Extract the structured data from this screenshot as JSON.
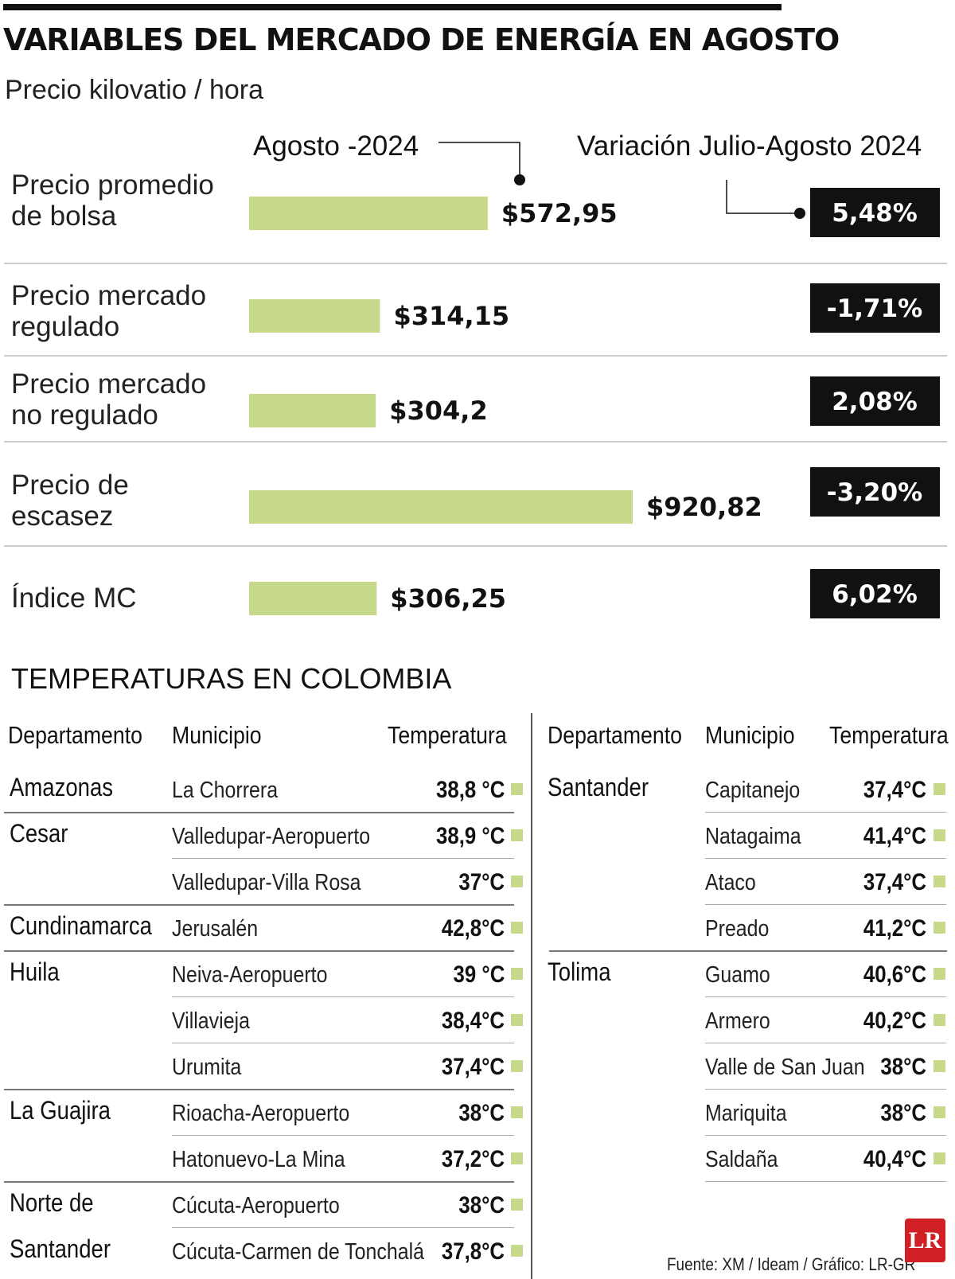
{
  "header": {
    "title": "VARIABLES DEL MERCADO DE ENERGÍA EN AGOSTO",
    "subtitle": "Precio kilovatio / hora",
    "col_price": "Agosto -2024",
    "col_variation": "Variación Julio-Agosto 2024"
  },
  "chart_data": {
    "type": "bar",
    "orientation": "horizontal",
    "title": "VARIABLES DEL MERCADO DE ENERGÍA EN AGOSTO",
    "subtitle": "Precio kilovatio / hora",
    "series_name": "Agosto -2024",
    "bar_color": "#c7d98b",
    "badge_color": "#111111",
    "xlim": [
      0,
      1000
    ],
    "categories": [
      [
        "Precio promedio",
        "de bolsa"
      ],
      [
        "Precio mercado",
        "regulado"
      ],
      [
        "Precio mercado",
        "no regulado"
      ],
      [
        "Precio de",
        "escasez"
      ],
      [
        "Índice MC"
      ]
    ],
    "values": [
      572.95,
      314.15,
      304.2,
      920.82,
      306.25
    ],
    "value_labels": [
      "$572,95",
      "$314,15",
      "$304,2",
      "$920,82",
      "$306,25"
    ],
    "variation_labels": [
      "5,48%",
      "-1,71%",
      "2,08%",
      "-3,20%",
      "6,02%"
    ],
    "variation_values": [
      5.48,
      -1.71,
      2.08,
      -3.2,
      6.02
    ]
  },
  "temperatures": {
    "section_title": "TEMPERATURAS EN COLOMBIA",
    "headers": {
      "department": "Departamento",
      "municipality": "Municipio",
      "temperature": "Temperatura"
    },
    "marker_color": "#c7d98b",
    "left_rows": [
      {
        "department": "Amazonas",
        "municipality": "La Chorrera",
        "temperature": "38,8 °C"
      },
      {
        "department": "Cesar",
        "municipality": "Valledupar-Aeropuerto",
        "temperature": "38,9 °C"
      },
      {
        "department": "",
        "municipality": "Valledupar-Villa Rosa",
        "temperature": "37°C"
      },
      {
        "department": "Cundinamarca",
        "municipality": "Jerusalén",
        "temperature": "42,8°C"
      },
      {
        "department": "Huila",
        "municipality": "Neiva-Aeropuerto",
        "temperature": "39 °C"
      },
      {
        "department": "",
        "municipality": "Villavieja",
        "temperature": "38,4°C"
      },
      {
        "department": "",
        "municipality": "Urumita",
        "temperature": "37,4°C"
      },
      {
        "department": "La Guajira",
        "municipality": "Rioacha-Aeropuerto",
        "temperature": "38°C"
      },
      {
        "department": "",
        "municipality": "Hatonuevo-La Mina",
        "temperature": "37,2°C"
      },
      {
        "department": "Norte de",
        "municipality": "Cúcuta-Aeropuerto",
        "temperature": "38°C"
      },
      {
        "department": "Santander",
        "municipality": "Cúcuta-Carmen de Tonchalá",
        "temperature": "37,8°C"
      }
    ],
    "right_rows": [
      {
        "department": "Santander",
        "municipality": "Capitanejo",
        "temperature": "37,4°C"
      },
      {
        "department": "",
        "municipality": "Natagaima",
        "temperature": "41,4°C"
      },
      {
        "department": "",
        "municipality": "Ataco",
        "temperature": "37,4°C"
      },
      {
        "department": "",
        "municipality": "Preado",
        "temperature": "41,2°C"
      },
      {
        "department": "Tolima",
        "municipality": "Guamo",
        "temperature": "40,6°C"
      },
      {
        "department": "",
        "municipality": "Armero",
        "temperature": "40,2°C"
      },
      {
        "department": "",
        "municipality": "Valle de San Juan",
        "temperature": "38°C"
      },
      {
        "department": "",
        "municipality": "Mariquita",
        "temperature": "38°C"
      },
      {
        "department": "",
        "municipality": "Saldaña",
        "temperature": "40,4°C"
      }
    ]
  },
  "footer": {
    "source": "Fuente: XM / Ideam / Gráfico: LR-GR",
    "logo": "LR"
  }
}
